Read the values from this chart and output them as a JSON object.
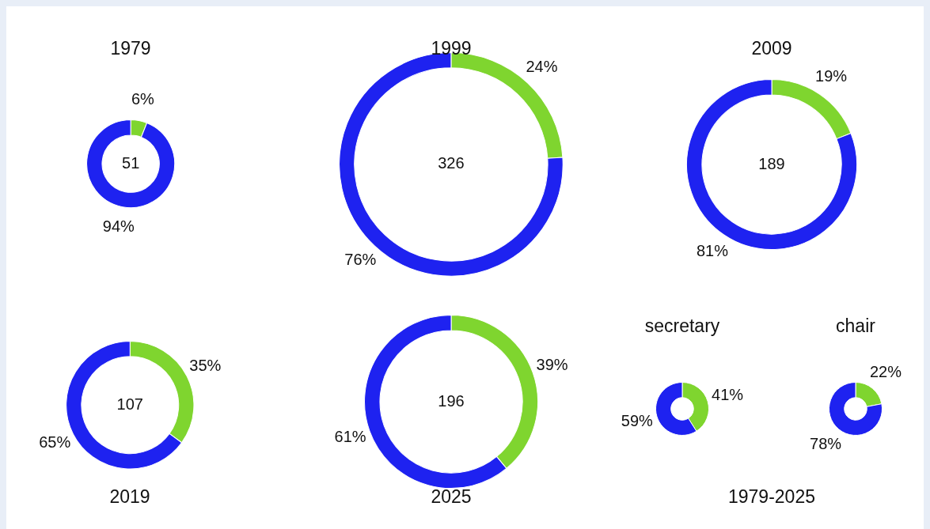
{
  "chart_data": [
    {
      "type": "donut",
      "title": "1979",
      "categories": [
        null,
        null
      ],
      "values": [
        6,
        94
      ],
      "colors": [
        "#7fd52f",
        "#1e22f0"
      ],
      "value_labels": [
        "6%",
        "94%"
      ],
      "annotations": [
        "51"
      ]
    },
    {
      "type": "donut",
      "title": "1999",
      "categories": [
        null,
        null
      ],
      "values": [
        24,
        76
      ],
      "colors": [
        "#7fd52f",
        "#1e22f0"
      ],
      "value_labels": [
        "24%",
        "76%"
      ],
      "annotations": [
        "326"
      ]
    },
    {
      "type": "donut",
      "title": "2009",
      "categories": [
        null,
        null
      ],
      "values": [
        19,
        81
      ],
      "colors": [
        "#7fd52f",
        "#1e22f0"
      ],
      "value_labels": [
        "19%",
        "81%"
      ],
      "annotations": [
        "189"
      ]
    },
    {
      "type": "donut",
      "title": "2019",
      "categories": [
        null,
        null
      ],
      "values": [
        35,
        65
      ],
      "colors": [
        "#7fd52f",
        "#1e22f0"
      ],
      "value_labels": [
        "35%",
        "65%"
      ],
      "annotations": [
        "107"
      ]
    },
    {
      "type": "donut",
      "title": "2025",
      "categories": [
        null,
        null
      ],
      "values": [
        39,
        61
      ],
      "colors": [
        "#7fd52f",
        "#1e22f0"
      ],
      "value_labels": [
        "39%",
        "61%"
      ],
      "annotations": [
        "196"
      ]
    },
    {
      "type": "donut",
      "title": "secretary",
      "categories": [
        null,
        null
      ],
      "values": [
        41,
        59
      ],
      "colors": [
        "#7fd52f",
        "#1e22f0"
      ],
      "value_labels": [
        "41%",
        "59%"
      ]
    },
    {
      "type": "donut",
      "title": "chair",
      "categories": [
        null,
        null
      ],
      "values": [
        22,
        78
      ],
      "colors": [
        "#7fd52f",
        "#1e22f0"
      ],
      "value_labels": [
        "22%",
        "78%"
      ]
    },
    {
      "type": "other",
      "title": "1979-2025"
    }
  ]
}
